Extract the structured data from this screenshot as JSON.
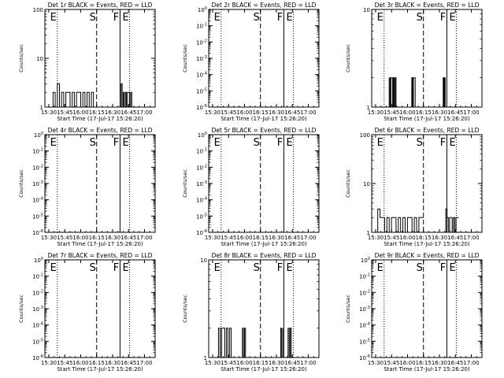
{
  "chart_data": [
    {
      "type": "line",
      "title": "Det 1r BLACK = Events, RED = LLD",
      "xlabel": "Start Time (17-Jul-17 15:26:20)",
      "ylabel": "Counts/sec",
      "x_ticks": [
        "15:30",
        "15:45",
        "16:00",
        "16:15",
        "16:30",
        "16:45",
        "17:00"
      ],
      "y_scale": "log",
      "y_ticks": [
        "1",
        "10",
        "100"
      ],
      "ylim": [
        1,
        100
      ],
      "markers": [
        {
          "label": "E",
          "style": "dotted",
          "x": "15:38"
        },
        {
          "label": "S",
          "style": "dashed",
          "x": "16:15"
        },
        {
          "label": "F",
          "style": "solid",
          "x": "16:37"
        },
        {
          "label": "E",
          "style": "dotted",
          "x": "16:46"
        }
      ],
      "series": [
        {
          "color": "#000000",
          "segments": [
            {
              "start": "15:32",
              "end": "16:12",
              "x": [
                0,
                0.05,
                0.1,
                0.15,
                0.2,
                0.25,
                0.3,
                0.35,
                0.4,
                0.45,
                0.5,
                0.55,
                0.6,
                0.65,
                0.7,
                0.75,
                0.8,
                0.85,
                0.9,
                0.95,
                1
              ],
              "y": [
                1,
                2,
                1,
                3,
                1,
                2,
                1,
                2,
                2,
                1,
                2,
                1,
                2,
                2,
                1,
                2,
                1,
                2,
                1,
                2,
                1
              ]
            },
            {
              "start": "16:38",
              "end": "16:48",
              "x": [
                0,
                0.1,
                0.2,
                0.3,
                0.4,
                0.5,
                0.6,
                0.7,
                0.8,
                0.9,
                1
              ],
              "y": [
                3,
                1,
                2,
                1,
                2,
                1,
                2,
                2,
                1,
                2,
                1
              ]
            }
          ]
        }
      ]
    },
    {
      "type": "line",
      "title": "Det 2r BLACK = Events, RED = LLD",
      "xlabel": "Start Time (17-Jul-17 15:26:20)",
      "ylabel": "Counts/sec",
      "x_ticks": [
        "15:30",
        "15:45",
        "16:00",
        "16:15",
        "16:30",
        "16:45",
        "17:00"
      ],
      "y_scale": "log",
      "y_ticks": [
        "10^0",
        "10^-1",
        "10^-2",
        "10^-3",
        "10^-4",
        "10^-5",
        "10^-6"
      ],
      "ylim": [
        1e-06,
        1
      ],
      "markers": [
        {
          "label": "E",
          "style": "dotted",
          "x": "15:38"
        },
        {
          "label": "S",
          "style": "dashed",
          "x": "16:15"
        },
        {
          "label": "F",
          "style": "solid",
          "x": "16:37"
        },
        {
          "label": "E",
          "style": "dotted",
          "x": "16:46"
        }
      ],
      "series": []
    },
    {
      "type": "line",
      "title": "Det 3r BLACK = Events, RED = LLD",
      "xlabel": "Start Time (17-Jul-17 15:26:20)",
      "ylabel": "Counts/sec",
      "x_ticks": [
        "15:30",
        "15:45",
        "16:00",
        "16:15",
        "16:30",
        "16:45",
        "17:00"
      ],
      "y_scale": "log",
      "y_ticks": [
        "1",
        "10"
      ],
      "ylim": [
        1,
        10
      ],
      "markers": [
        {
          "label": "E",
          "style": "dotted",
          "x": "15:38"
        },
        {
          "label": "S",
          "style": "dashed",
          "x": "16:15"
        },
        {
          "label": "F",
          "style": "solid",
          "x": "16:37"
        },
        {
          "label": "E",
          "style": "dotted",
          "x": "16:46"
        }
      ],
      "series": [
        {
          "color": "#000000",
          "segments": [
            {
              "start": "15:42",
              "end": "15:50",
              "x": [
                0,
                0.1,
                0.2,
                0.3,
                0.4,
                0.5,
                0.6,
                0.7,
                0.8,
                0.9,
                1
              ],
              "y": [
                1,
                2,
                1,
                2,
                2,
                1,
                2,
                1,
                2,
                1,
                1
              ]
            },
            {
              "start": "16:04",
              "end": "16:08",
              "x": [
                0,
                0.2,
                0.4,
                0.6,
                0.8,
                1
              ],
              "y": [
                2,
                1,
                2,
                2,
                1,
                1
              ]
            },
            {
              "start": "16:33",
              "end": "16:36",
              "x": [
                0,
                0.2,
                0.4,
                0.6,
                0.8,
                1
              ],
              "y": [
                1,
                2,
                1,
                2,
                1,
                1
              ]
            }
          ]
        }
      ]
    },
    {
      "type": "line",
      "title": "Det 4r BLACK = Events, RED = LLD",
      "xlabel": "Start Time (17-Jul-17 15:26:20)",
      "ylabel": "Counts/sec",
      "x_ticks": [
        "15:30",
        "15:45",
        "16:00",
        "16:15",
        "16:30",
        "16:45",
        "17:00"
      ],
      "y_scale": "log",
      "y_ticks": [
        "10^0",
        "10^-1",
        "10^-2",
        "10^-3",
        "10^-4",
        "10^-5",
        "10^-6"
      ],
      "ylim": [
        1e-06,
        1
      ],
      "markers": [
        {
          "label": "E",
          "style": "dotted",
          "x": "15:38"
        },
        {
          "label": "S",
          "style": "dashed",
          "x": "16:15"
        },
        {
          "label": "F",
          "style": "solid",
          "x": "16:37"
        },
        {
          "label": "E",
          "style": "dotted",
          "x": "16:46"
        }
      ],
      "series": []
    },
    {
      "type": "line",
      "title": "Det 5r BLACK = Events, RED = LLD",
      "xlabel": "Start Time (17-Jul-17 15:26:20)",
      "ylabel": "Counts/sec",
      "x_ticks": [
        "15:30",
        "15:45",
        "16:00",
        "16:15",
        "16:30",
        "16:45",
        "17:00"
      ],
      "y_scale": "log",
      "y_ticks": [
        "10^0",
        "10^-1",
        "10^-2",
        "10^-3",
        "10^-4",
        "10^-5",
        "10^-6"
      ],
      "ylim": [
        1e-06,
        1
      ],
      "markers": [
        {
          "label": "E",
          "style": "dotted",
          "x": "15:38"
        },
        {
          "label": "S",
          "style": "dashed",
          "x": "16:15"
        },
        {
          "label": "F",
          "style": "solid",
          "x": "16:37"
        },
        {
          "label": "E",
          "style": "dotted",
          "x": "16:46"
        }
      ],
      "series": []
    },
    {
      "type": "line",
      "title": "Det 6r BLACK = Events, RED = LLD",
      "xlabel": "Start Time (17-Jul-17 15:26:20)",
      "ylabel": "Counts/sec",
      "x_ticks": [
        "15:30",
        "15:45",
        "16:00",
        "16:15",
        "16:30",
        "16:45",
        "17:00"
      ],
      "y_scale": "log",
      "y_ticks": [
        "1",
        "10",
        "100"
      ],
      "ylim": [
        1,
        100
      ],
      "markers": [
        {
          "label": "E",
          "style": "dotted",
          "x": "15:38"
        },
        {
          "label": "S",
          "style": "dashed",
          "x": "16:15"
        },
        {
          "label": "F",
          "style": "solid",
          "x": "16:37"
        },
        {
          "label": "E",
          "style": "dotted",
          "x": "16:46"
        }
      ],
      "series": [
        {
          "color": "#000000",
          "segments": [
            {
              "start": "15:32",
              "end": "16:15",
              "x": [
                0,
                0.05,
                0.1,
                0.15,
                0.2,
                0.25,
                0.3,
                0.35,
                0.4,
                0.45,
                0.5,
                0.55,
                0.6,
                0.65,
                0.7,
                0.75,
                0.8,
                0.85,
                0.9,
                0.95,
                1
              ],
              "y": [
                3,
                2,
                2,
                1,
                2,
                1,
                2,
                2,
                1,
                2,
                1,
                2,
                1,
                2,
                2,
                1,
                2,
                1,
                2,
                2,
                2
              ]
            },
            {
              "start": "16:36",
              "end": "16:48",
              "x": [
                0,
                0.1,
                0.2,
                0.3,
                0.4,
                0.5,
                0.6,
                0.7,
                0.8,
                0.9,
                1
              ],
              "y": [
                3,
                2,
                1,
                2,
                2,
                1,
                2,
                1,
                2,
                2,
                2
              ]
            }
          ]
        }
      ]
    },
    {
      "type": "line",
      "title": "Det 7r BLACK = Events, RED = LLD",
      "xlabel": "Start Time (17-Jul-17 15:26:20)",
      "ylabel": "Counts/sec",
      "x_ticks": [
        "15:30",
        "15:45",
        "16:00",
        "16:15",
        "16:30",
        "16:45",
        "17:00"
      ],
      "y_scale": "log",
      "y_ticks": [
        "10^0",
        "10^-1",
        "10^-2",
        "10^-3",
        "10^-4",
        "10^-5",
        "10^-6"
      ],
      "ylim": [
        1e-06,
        1
      ],
      "markers": [
        {
          "label": "E",
          "style": "dotted",
          "x": "15:38"
        },
        {
          "label": "S",
          "style": "dashed",
          "x": "16:15"
        },
        {
          "label": "F",
          "style": "solid",
          "x": "16:37"
        },
        {
          "label": "E",
          "style": "dotted",
          "x": "16:46"
        }
      ],
      "series": []
    },
    {
      "type": "line",
      "title": "Det 8r BLACK = Events, RED = LLD",
      "xlabel": "Start Time (17-Jul-17 15:26:20)",
      "ylabel": "Counts/sec",
      "x_ticks": [
        "15:30",
        "15:45",
        "16:00",
        "16:15",
        "16:30",
        "16:45",
        "17:00"
      ],
      "y_scale": "log",
      "y_ticks": [
        "1",
        "10"
      ],
      "ylim": [
        1,
        10
      ],
      "markers": [
        {
          "label": "E",
          "style": "dotted",
          "x": "15:38"
        },
        {
          "label": "S",
          "style": "dashed",
          "x": "16:15"
        },
        {
          "label": "F",
          "style": "solid",
          "x": "16:37"
        },
        {
          "label": "E",
          "style": "dotted",
          "x": "16:46"
        }
      ],
      "series": [
        {
          "color": "#000000",
          "segments": [
            {
              "start": "15:34",
              "end": "15:49",
              "x": [
                0,
                0.1,
                0.2,
                0.3,
                0.4,
                0.5,
                0.6,
                0.7,
                0.8,
                0.9,
                1
              ],
              "y": [
                1,
                2,
                1,
                2,
                2,
                1,
                2,
                1,
                2,
                1,
                1
              ]
            },
            {
              "start": "15:58",
              "end": "16:02",
              "x": [
                0,
                0.25,
                0.5,
                0.75,
                1
              ],
              "y": [
                2,
                1,
                2,
                1,
                1
              ]
            },
            {
              "start": "16:34",
              "end": "16:36",
              "x": [
                0,
                0.5,
                1
              ],
              "y": [
                2,
                1,
                2
              ]
            },
            {
              "start": "16:40",
              "end": "16:45",
              "x": [
                0,
                0.2,
                0.4,
                0.6,
                0.8,
                1
              ],
              "y": [
                1,
                2,
                1,
                2,
                1,
                1
              ]
            }
          ]
        }
      ]
    },
    {
      "type": "line",
      "title": "Det 9r BLACK = Events, RED = LLD",
      "xlabel": "Start Time (17-Jul-17 15:26:20)",
      "ylabel": "Counts/sec",
      "x_ticks": [
        "15:30",
        "15:45",
        "16:00",
        "16:15",
        "16:30",
        "16:45",
        "17:00"
      ],
      "y_scale": "log",
      "y_ticks": [
        "10^0",
        "10^-1",
        "10^-2",
        "10^-3",
        "10^-4",
        "10^-5",
        "10^-6"
      ],
      "ylim": [
        1e-06,
        1
      ],
      "markers": [
        {
          "label": "E",
          "style": "dotted",
          "x": "15:38"
        },
        {
          "label": "S",
          "style": "dashed",
          "x": "16:15"
        },
        {
          "label": "F",
          "style": "solid",
          "x": "16:37"
        },
        {
          "label": "E",
          "style": "dotted",
          "x": "16:46"
        }
      ],
      "series": []
    }
  ]
}
